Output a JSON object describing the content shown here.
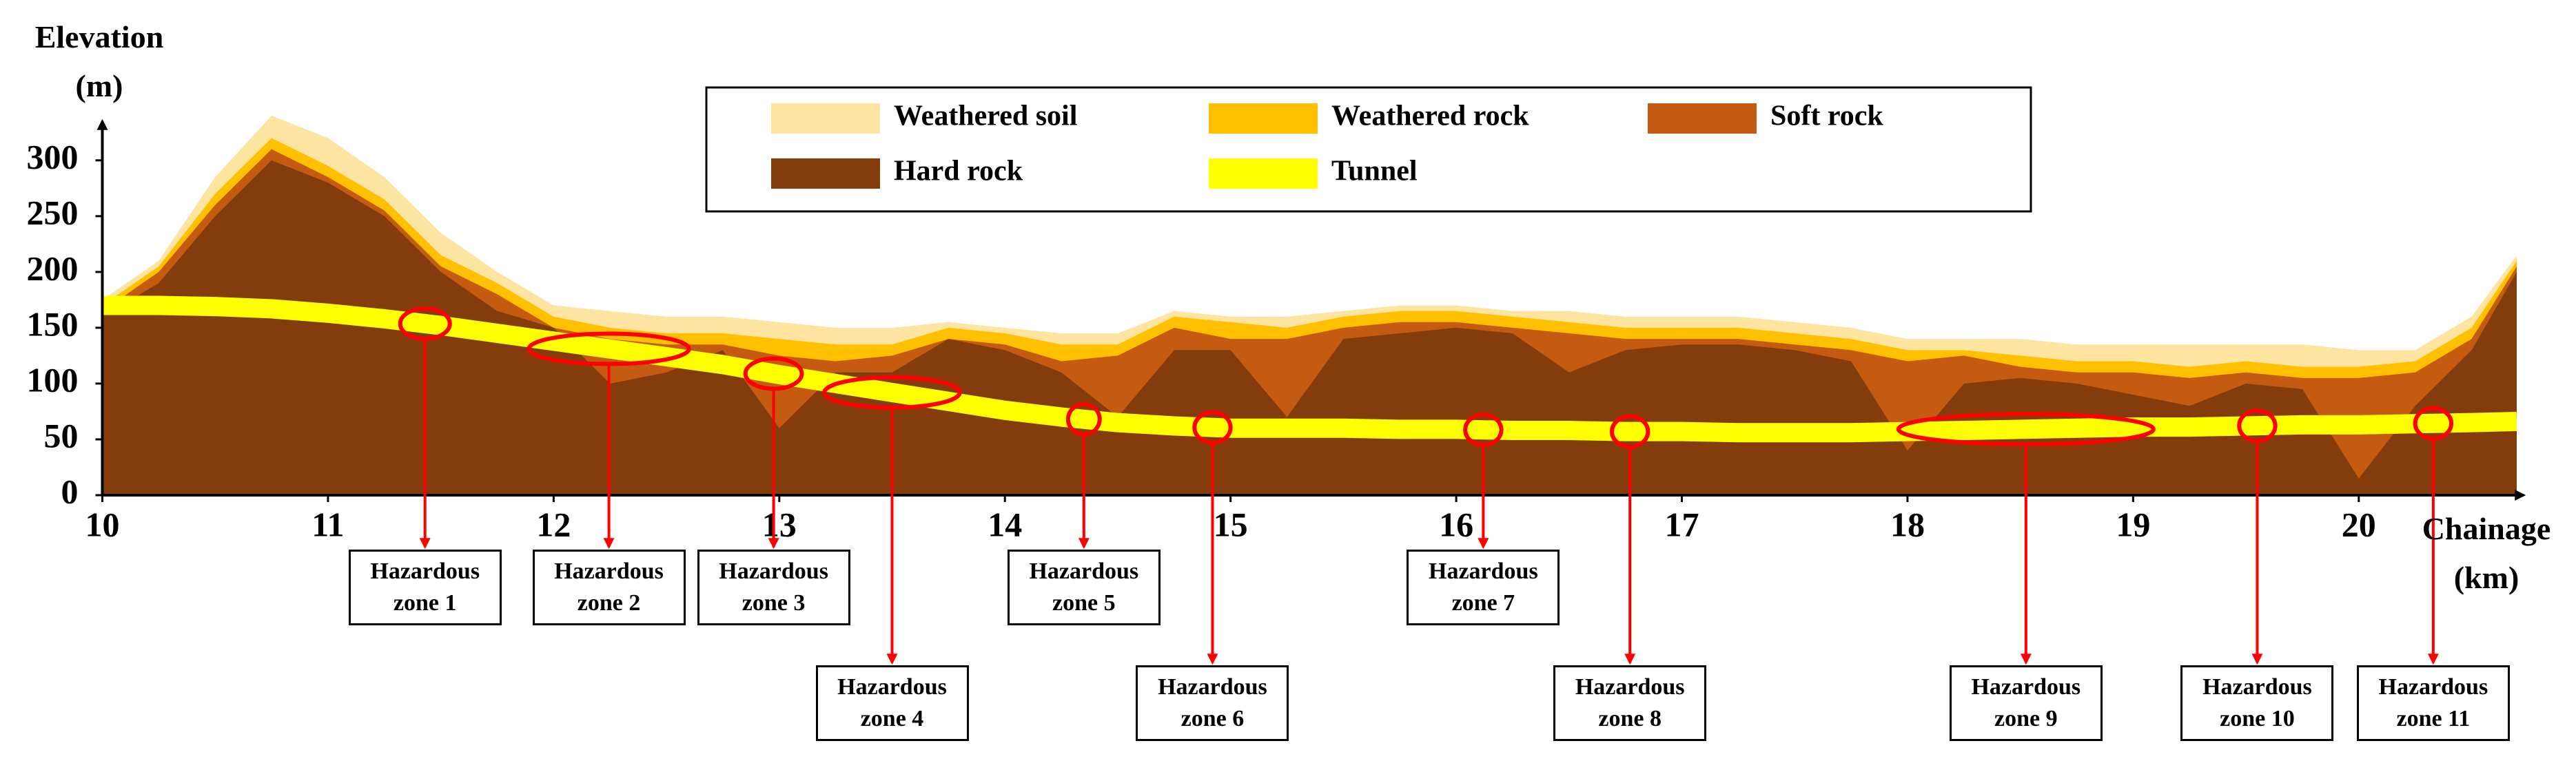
{
  "chart_data": {
    "type": "area",
    "xlabel": "Chainage (km)",
    "ylabel": "Elevation (m)",
    "xlim": [
      10,
      20.7
    ],
    "ylim": [
      0,
      340
    ],
    "xticks": [
      10,
      11,
      12,
      13,
      14,
      15,
      16,
      17,
      18,
      19,
      20
    ],
    "yticks": [
      0,
      50,
      100,
      150,
      200,
      250,
      300
    ],
    "x": [
      10,
      10.25,
      10.5,
      10.75,
      11,
      11.25,
      11.5,
      11.75,
      12,
      12.25,
      12.5,
      12.75,
      13,
      13.25,
      13.5,
      13.75,
      14,
      14.25,
      14.5,
      14.75,
      15,
      15.25,
      15.5,
      15.75,
      16,
      16.25,
      16.5,
      16.75,
      17,
      17.25,
      17.5,
      17.75,
      18,
      18.25,
      18.5,
      18.75,
      19,
      19.25,
      19.5,
      19.75,
      20,
      20.25,
      20.5,
      20.7
    ],
    "series": [
      {
        "name": "Weathered soil",
        "color": "#fde4a0",
        "values": [
          175,
          210,
          285,
          340,
          320,
          285,
          235,
          200,
          170,
          165,
          160,
          160,
          155,
          150,
          150,
          155,
          150,
          145,
          145,
          165,
          160,
          160,
          165,
          170,
          170,
          165,
          165,
          160,
          160,
          160,
          155,
          150,
          140,
          140,
          140,
          135,
          135,
          135,
          135,
          135,
          130,
          130,
          160,
          215
        ]
      },
      {
        "name": "Weathered rock",
        "color": "#ffc000",
        "values": [
          170,
          205,
          270,
          320,
          295,
          265,
          215,
          190,
          160,
          150,
          145,
          145,
          140,
          135,
          135,
          150,
          145,
          135,
          135,
          160,
          155,
          150,
          160,
          165,
          165,
          160,
          155,
          150,
          150,
          150,
          145,
          140,
          130,
          130,
          125,
          120,
          120,
          115,
          120,
          115,
          115,
          120,
          150,
          210
        ]
      },
      {
        "name": "Soft rock",
        "color": "#c55a11",
        "values": [
          165,
          200,
          260,
          310,
          285,
          255,
          205,
          180,
          150,
          140,
          135,
          135,
          125,
          120,
          125,
          140,
          135,
          120,
          125,
          150,
          140,
          140,
          150,
          155,
          155,
          150,
          145,
          140,
          140,
          140,
          135,
          130,
          120,
          125,
          115,
          110,
          110,
          105,
          110,
          105,
          105,
          110,
          140,
          205
        ]
      },
      {
        "name": "Hard rock",
        "color": "#843c0c",
        "values": [
          160,
          190,
          250,
          300,
          280,
          250,
          200,
          165,
          150,
          100,
          110,
          130,
          60,
          110,
          110,
          140,
          130,
          110,
          70,
          130,
          130,
          70,
          140,
          145,
          150,
          145,
          110,
          130,
          135,
          135,
          130,
          120,
          40,
          100,
          105,
          100,
          90,
          80,
          100,
          95,
          15,
          80,
          130,
          200
        ]
      },
      {
        "name": "Tunnel",
        "color": "#ffff00",
        "values": [
          170,
          170,
          169,
          167,
          163,
          158,
          152,
          145,
          138,
          131,
          124,
          117,
          108,
          100,
          92,
          84,
          76,
          70,
          65,
          62,
          60,
          60,
          60,
          59,
          59,
          58,
          58,
          57,
          57,
          56,
          56,
          56,
          57,
          58,
          59,
          60,
          61,
          61,
          62,
          63,
          63,
          64,
          65,
          66
        ]
      }
    ],
    "annotations": [
      {
        "text": "Hazardous zone 1",
        "range": [
          11.32,
          11.54
        ]
      },
      {
        "text": "Hazardous zone 2",
        "range": [
          11.89,
          12.6
        ]
      },
      {
        "text": "Hazardous zone 3",
        "range": [
          12.85,
          13.1
        ]
      },
      {
        "text": "Hazardous zone 4",
        "range": [
          13.2,
          13.8
        ]
      },
      {
        "text": "Hazardous zone 5",
        "range": [
          14.28,
          14.42
        ]
      },
      {
        "text": "Hazardous zone 6",
        "range": [
          14.84,
          15.0
        ]
      },
      {
        "text": "Hazardous zone 7",
        "range": [
          16.04,
          16.2
        ]
      },
      {
        "text": "Hazardous zone 8",
        "range": [
          16.69,
          16.85
        ]
      },
      {
        "text": "Hazardous zone 9",
        "range": [
          17.96,
          19.09
        ]
      },
      {
        "text": "Hazardous zone 10",
        "range": [
          19.47,
          19.63
        ]
      },
      {
        "text": "Hazardous zone 11",
        "range": [
          20.25,
          20.41
        ]
      }
    ],
    "annotation_color": "#ff0000"
  }
}
